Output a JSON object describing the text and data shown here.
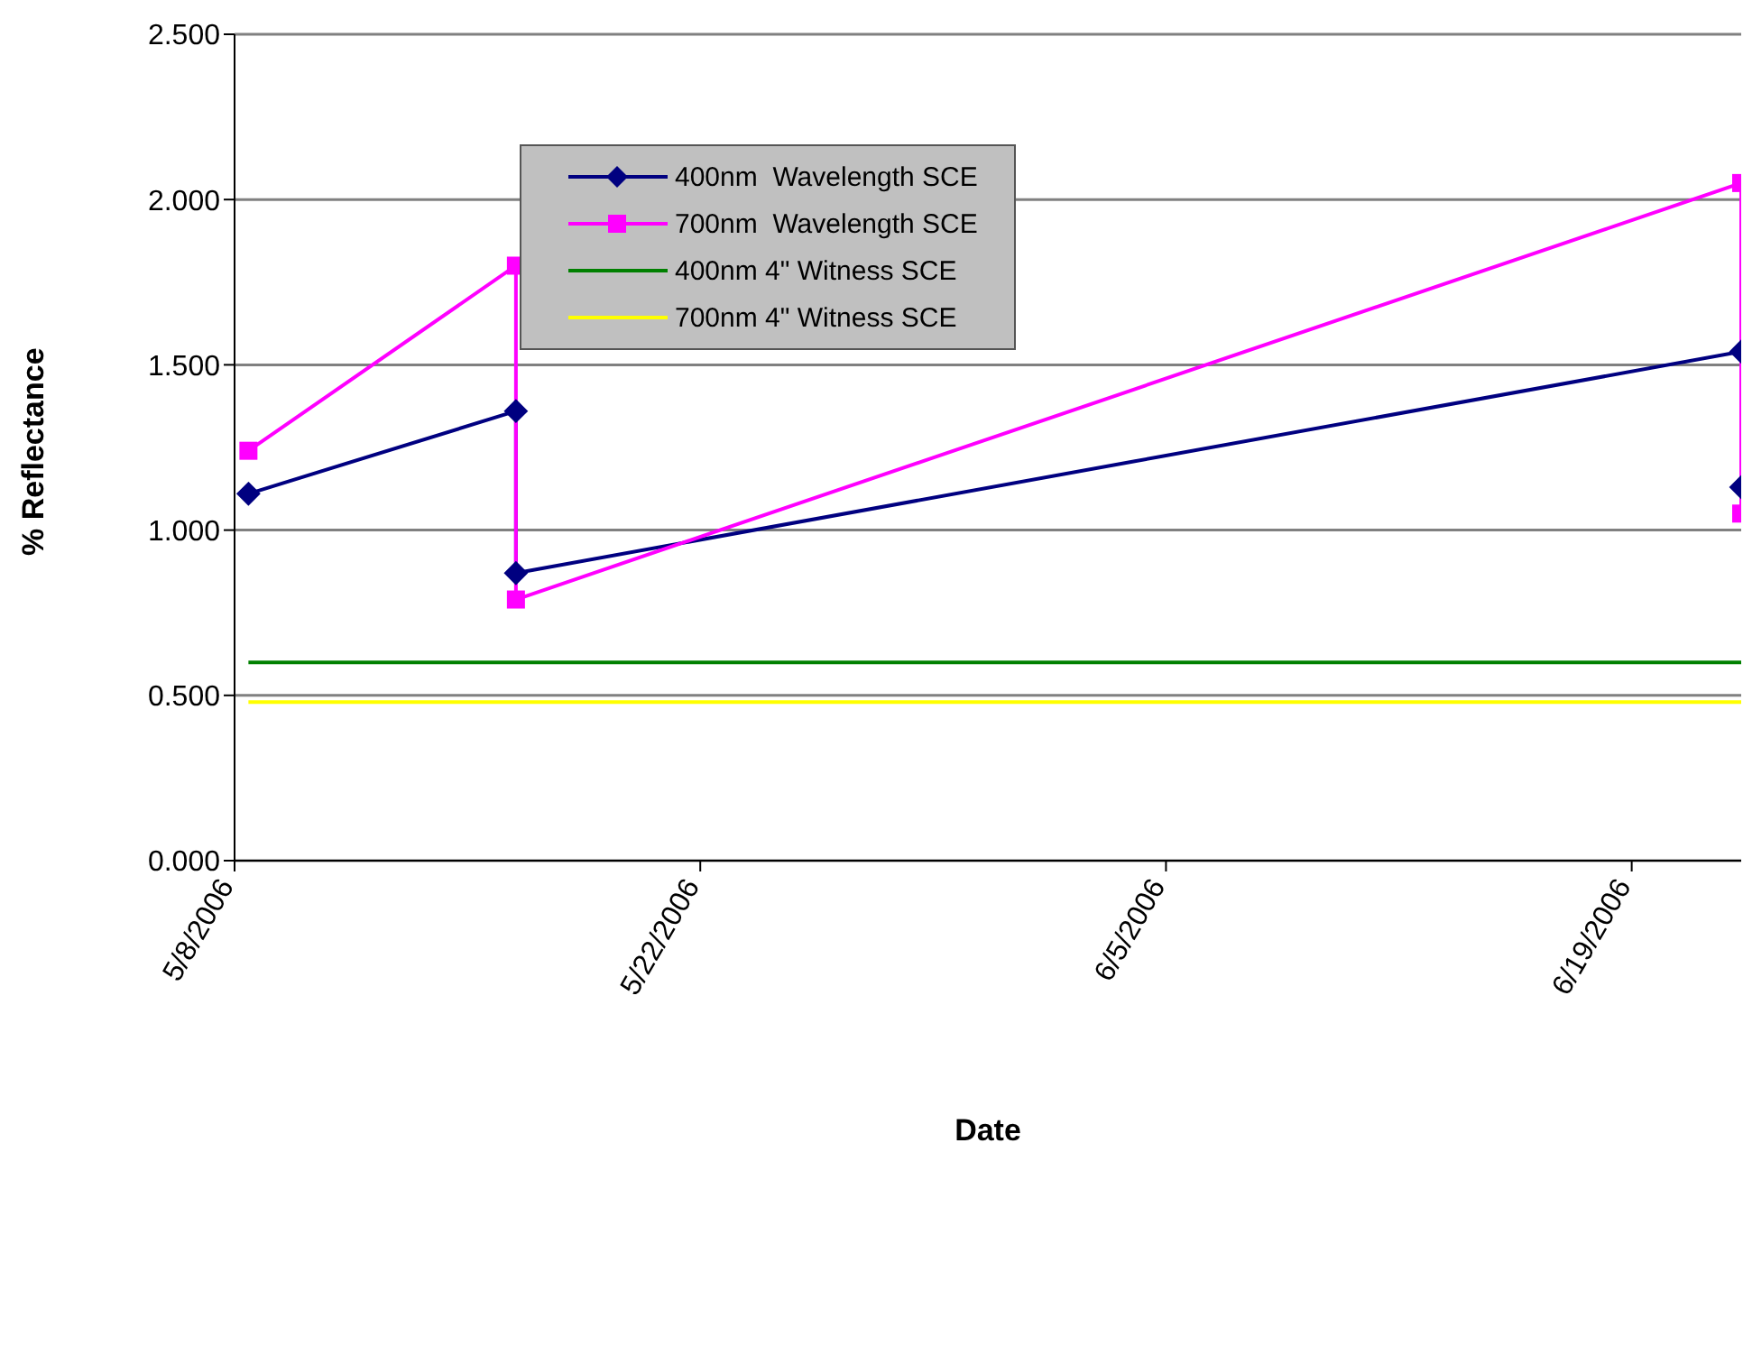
{
  "chart_data": {
    "type": "line",
    "xlabel": "Date",
    "ylabel": "% Reflectance",
    "xlim": [
      "2006-05-08",
      "2006-06-22T07:00"
    ],
    "xticks": [
      {
        "value": "2006-05-08",
        "label": "5/8/2006"
      },
      {
        "value": "2006-05-22",
        "label": "5/22/2006"
      },
      {
        "value": "2006-06-05",
        "label": "6/5/2006"
      },
      {
        "value": "2006-06-19",
        "label": "6/19/2006"
      }
    ],
    "ylim": [
      0,
      2.5
    ],
    "yticks": [
      {
        "value": 0,
        "label": "0.000"
      },
      {
        "value": 0.5,
        "label": "0.500"
      },
      {
        "value": 1,
        "label": "1.000"
      },
      {
        "value": 1.5,
        "label": "1.500"
      },
      {
        "value": 2,
        "label": "2.000"
      },
      {
        "value": 2.5,
        "label": "2.500"
      }
    ],
    "grid": "y",
    "legend": "top left",
    "line_style": "solid",
    "series": [
      {
        "name": "400nm  Wavelength SCE",
        "color": "#000080",
        "marker": "diamond",
        "x": [
          "2006-05-08T10:00",
          "2006-05-16T11:00",
          "2006-05-16T11:00",
          "2006-06-22T07:00",
          "2006-06-22T07:00"
        ],
        "values": [
          1.11,
          1.36,
          0.87,
          1.54,
          1.13
        ]
      },
      {
        "name": "700nm  Wavelength SCE",
        "color": "#ff00ff",
        "marker": "square",
        "x": [
          "2006-05-08T10:00",
          "2006-05-16T11:00",
          "2006-05-16T11:00",
          "2006-06-22T07:00",
          "2006-06-22T07:00"
        ],
        "values": [
          1.24,
          1.8,
          0.79,
          2.05,
          1.05
        ]
      },
      {
        "name": "400nm 4\" Witness SCE",
        "color": "#008000",
        "marker": "none",
        "x": [
          "2006-05-08T10:00",
          "2006-06-22T07:00"
        ],
        "values": [
          0.6,
          0.6
        ]
      },
      {
        "name": "700nm 4\" Witness SCE",
        "color": "#ffff00",
        "marker": "none",
        "x": [
          "2006-05-08T10:00",
          "2006-06-22T07:00"
        ],
        "values": [
          0.48,
          0.48
        ]
      }
    ]
  }
}
